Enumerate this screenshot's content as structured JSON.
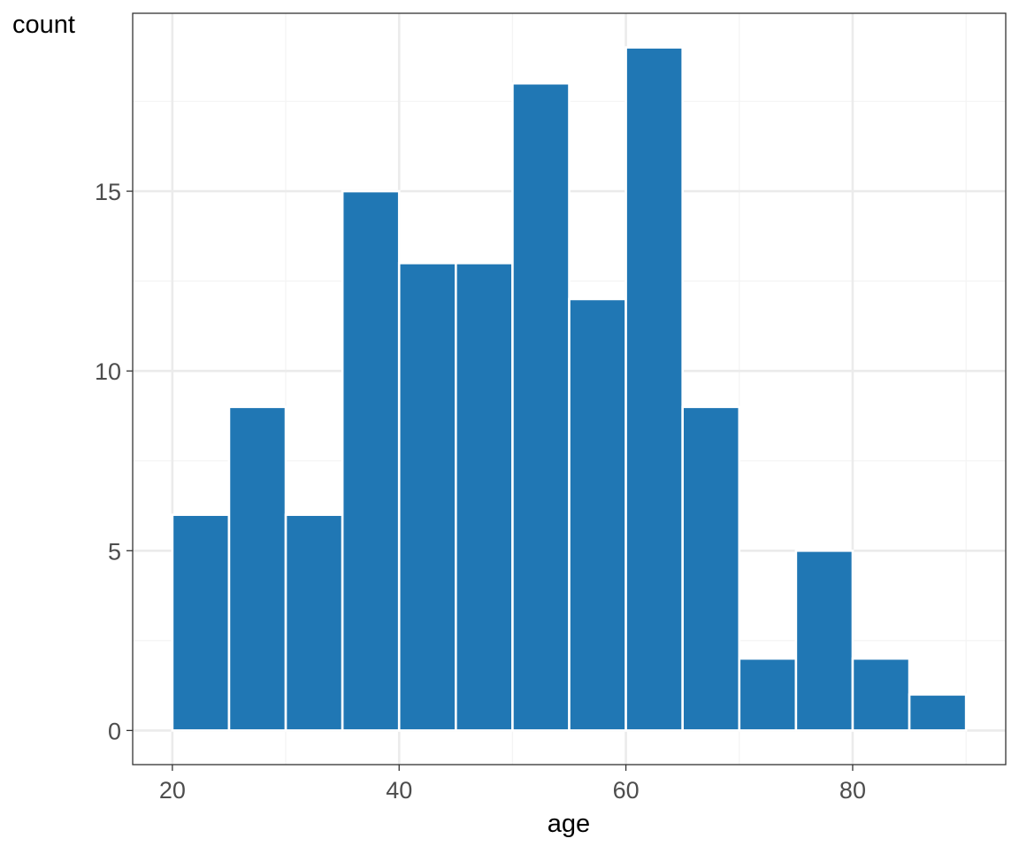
{
  "chart_data": {
    "type": "bar",
    "title": "",
    "xlabel": "age",
    "ylabel": "count",
    "bins": [
      {
        "start": 20,
        "end": 25,
        "count": 6
      },
      {
        "start": 25,
        "end": 30,
        "count": 9
      },
      {
        "start": 30,
        "end": 35,
        "count": 6
      },
      {
        "start": 35,
        "end": 40,
        "count": 15
      },
      {
        "start": 40,
        "end": 45,
        "count": 13
      },
      {
        "start": 45,
        "end": 50,
        "count": 13
      },
      {
        "start": 50,
        "end": 55,
        "count": 18
      },
      {
        "start": 55,
        "end": 60,
        "count": 12
      },
      {
        "start": 60,
        "end": 65,
        "count": 19
      },
      {
        "start": 65,
        "end": 70,
        "count": 9
      },
      {
        "start": 70,
        "end": 75,
        "count": 2
      },
      {
        "start": 75,
        "end": 80,
        "count": 5
      },
      {
        "start": 80,
        "end": 85,
        "count": 2
      },
      {
        "start": 85,
        "end": 90,
        "count": 1
      }
    ],
    "xlim": [
      16.5,
      93.5
    ],
    "ylim": [
      -0.95,
      19.95
    ],
    "x_ticks": [
      20,
      40,
      60,
      80
    ],
    "x_tick_labels": [
      "20",
      "40",
      "60",
      "80"
    ],
    "y_ticks": [
      0,
      5,
      10,
      15
    ],
    "y_tick_labels": [
      "0",
      "5",
      "10",
      "15"
    ],
    "grid": true,
    "legend": "none",
    "colors": {
      "bar_fill": "#2077b4",
      "bar_outline": "#ffffff",
      "panel_border": "#333333",
      "grid_major": "#ebebeb",
      "grid_minor": "#f4f4f4"
    }
  }
}
